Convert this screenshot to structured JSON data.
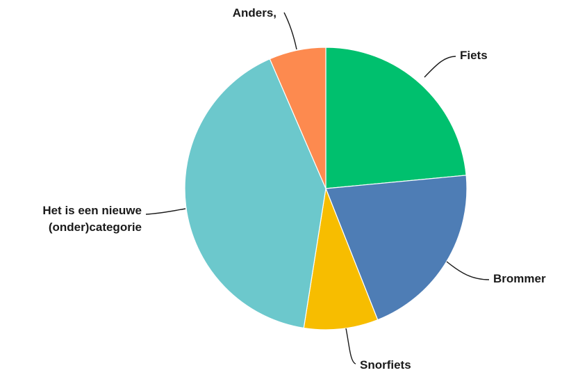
{
  "chart_data": {
    "type": "pie",
    "title": "",
    "slices": [
      {
        "label": "Fiets",
        "value": 23.5,
        "color": "#00c06e"
      },
      {
        "label": "Brommer",
        "value": 20.5,
        "color": "#4e7db5"
      },
      {
        "label": "Snorfiets",
        "value": 8.5,
        "color": "#f7bd00"
      },
      {
        "label": "Het is een nieuwe (onder)categorie",
        "label_lines": [
          "Het is een nieuwe",
          "(onder)categorie"
        ],
        "value": 41.0,
        "color": "#6cc8cc"
      },
      {
        "label": "Anders,",
        "value": 6.5,
        "color": "#fd8a4f"
      }
    ],
    "start_angle": "12 o'clock",
    "direction": "clockwise",
    "legend": "none"
  }
}
